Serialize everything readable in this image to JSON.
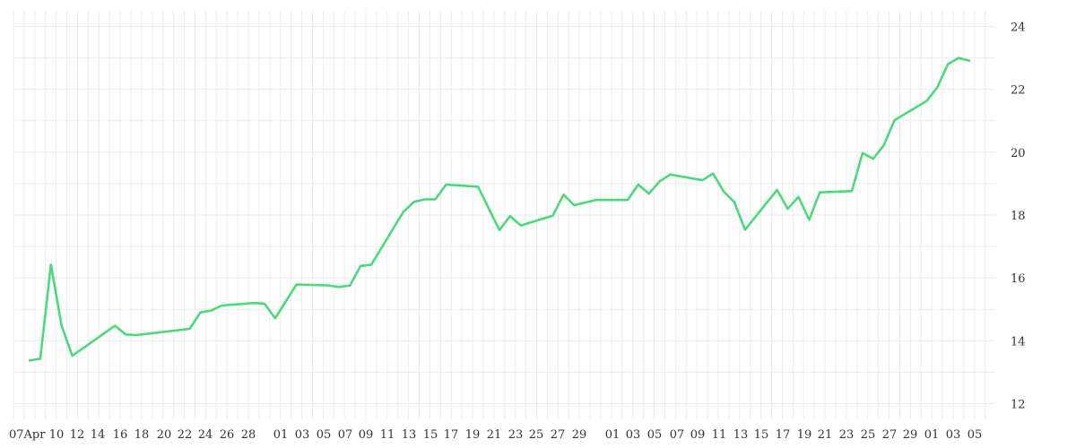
{
  "chart_data": {
    "type": "line",
    "x_ticks": [
      "07Apr",
      "10",
      "12",
      "14",
      "16",
      "18",
      "20",
      "22",
      "24",
      "26",
      "28",
      "01",
      "03",
      "05",
      "07",
      "09",
      "11",
      "13",
      "15",
      "17",
      "19",
      "21",
      "23",
      "25",
      "27",
      "29",
      "01",
      "03",
      "05",
      "07",
      "09",
      "11",
      "13",
      "15",
      "17",
      "19",
      "21",
      "23",
      "25",
      "27",
      "29",
      "01",
      "03",
      "05"
    ],
    "ylim": [
      11.5,
      24.5
    ],
    "yticks": [
      12,
      14,
      16,
      18,
      20,
      22,
      24
    ],
    "grid": true,
    "y_axis_position": "right",
    "series": [
      {
        "color": "#4cd97b",
        "points": [
          [
            "2021-04-07",
            13.37
          ],
          [
            "2021-04-08",
            13.43
          ],
          [
            "2021-04-09",
            16.42
          ],
          [
            "2021-04-10",
            14.48
          ],
          [
            "2021-04-11",
            13.52
          ],
          [
            "2021-04-15",
            14.48
          ],
          [
            "2021-04-16",
            14.2
          ],
          [
            "2021-04-17",
            14.18
          ],
          [
            "2021-04-22",
            14.38
          ],
          [
            "2021-04-23",
            14.9
          ],
          [
            "2021-04-24",
            14.96
          ],
          [
            "2021-04-25",
            15.12
          ],
          [
            "2021-04-28",
            15.2
          ],
          [
            "2021-04-29",
            15.18
          ],
          [
            "2021-04-30",
            14.72
          ],
          [
            "2021-05-02",
            15.79
          ],
          [
            "2021-05-05",
            15.76
          ],
          [
            "2021-05-06",
            15.71
          ],
          [
            "2021-05-07",
            15.76
          ],
          [
            "2021-05-08",
            16.38
          ],
          [
            "2021-05-09",
            16.42
          ],
          [
            "2021-05-12",
            18.1
          ],
          [
            "2021-05-13",
            18.42
          ],
          [
            "2021-05-14",
            18.5
          ],
          [
            "2021-05-15",
            18.5
          ],
          [
            "2021-05-16",
            18.97
          ],
          [
            "2021-05-19",
            18.9
          ],
          [
            "2021-05-21",
            17.52
          ],
          [
            "2021-05-22",
            17.97
          ],
          [
            "2021-05-23",
            17.67
          ],
          [
            "2021-05-26",
            17.98
          ],
          [
            "2021-05-27",
            18.65
          ],
          [
            "2021-05-28",
            18.31
          ],
          [
            "2021-05-30",
            18.48
          ],
          [
            "2021-06-02",
            18.48
          ],
          [
            "2021-06-03",
            18.97
          ],
          [
            "2021-06-04",
            18.68
          ],
          [
            "2021-06-05",
            19.07
          ],
          [
            "2021-06-06",
            19.29
          ],
          [
            "2021-06-09",
            19.11
          ],
          [
            "2021-06-10",
            19.32
          ],
          [
            "2021-06-11",
            18.75
          ],
          [
            "2021-06-12",
            18.41
          ],
          [
            "2021-06-13",
            17.53
          ],
          [
            "2021-06-16",
            18.8
          ],
          [
            "2021-06-17",
            18.2
          ],
          [
            "2021-06-18",
            18.58
          ],
          [
            "2021-06-19",
            17.85
          ],
          [
            "2021-06-20",
            18.72
          ],
          [
            "2021-06-23",
            18.76
          ],
          [
            "2021-06-24",
            19.97
          ],
          [
            "2021-06-25",
            19.79
          ],
          [
            "2021-06-26",
            20.22
          ],
          [
            "2021-06-27",
            21.02
          ],
          [
            "2021-06-30",
            21.63
          ],
          [
            "2021-07-01",
            22.06
          ],
          [
            "2021-07-02",
            22.8
          ],
          [
            "2021-07-03",
            23.0
          ],
          [
            "2021-07-04",
            22.91
          ]
        ]
      }
    ]
  }
}
